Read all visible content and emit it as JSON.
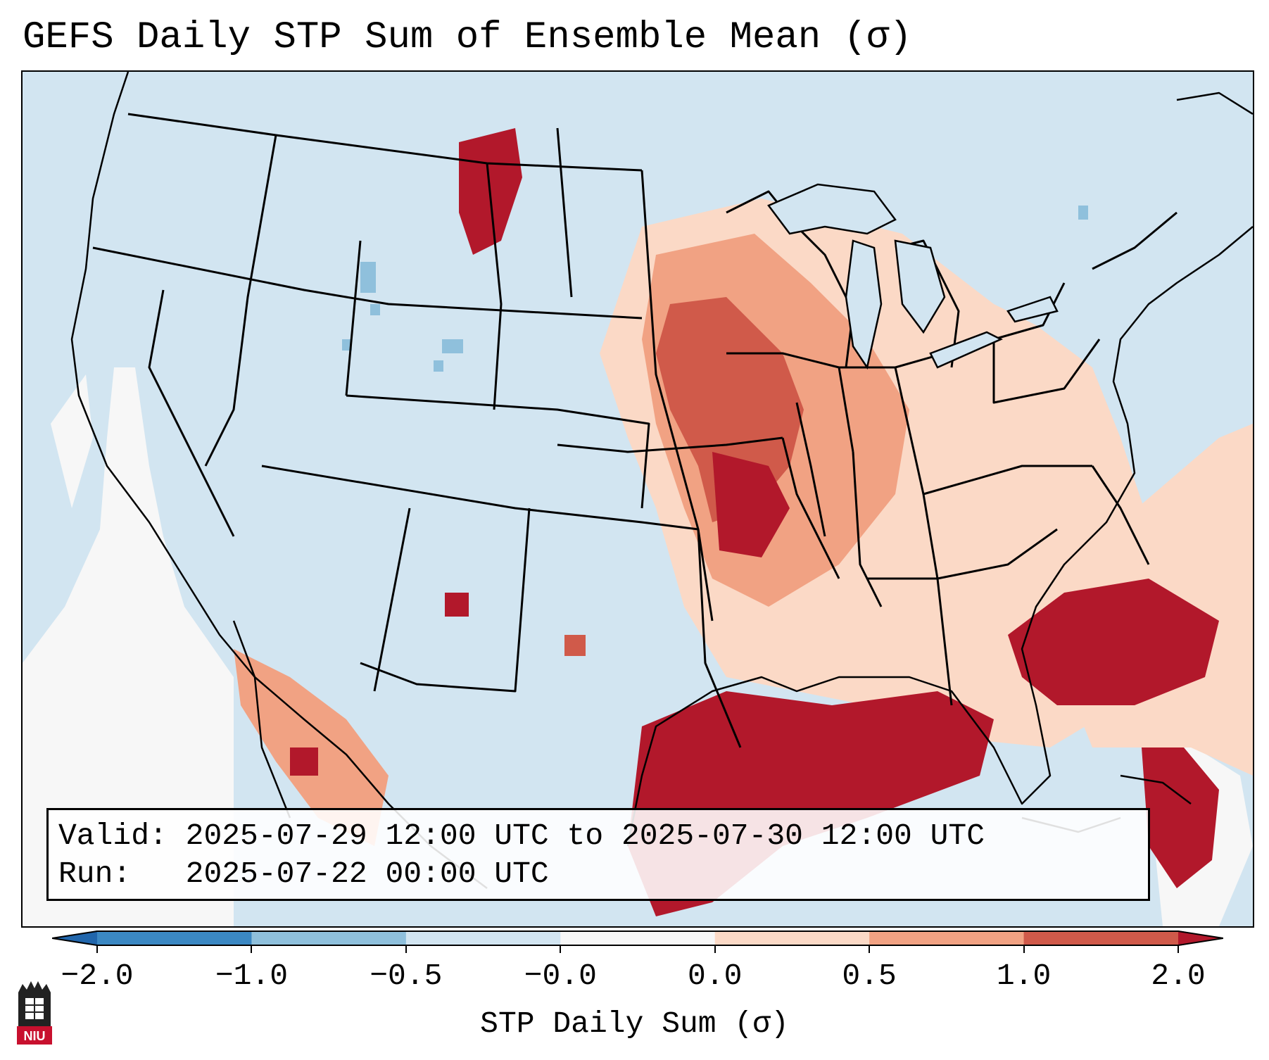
{
  "title": "GEFS Daily STP Sum of Ensemble Mean (σ)",
  "info": {
    "valid_label": "Valid:",
    "valid_value": "2025-07-29 12:00 UTC to 2025-07-30 12:00 UTC",
    "run_label": "Run:",
    "run_value": "2025-07-22 00:00 UTC"
  },
  "colorbar": {
    "label": "STP Daily Sum (σ)",
    "ticks": [
      "−2.0",
      "−1.0",
      "−0.5",
      "−0.0",
      "0.0",
      "0.5",
      "1.0",
      "2.0"
    ],
    "bins": [
      {
        "from": -2.0,
        "to": -1.0,
        "color": "#3b88c3"
      },
      {
        "from": -1.0,
        "to": -0.5,
        "color": "#8fc0dc"
      },
      {
        "from": -0.5,
        "to": -0.0,
        "color": "#d2e5f1"
      },
      {
        "from": -0.0,
        "to": 0.0,
        "color": "#f7f7f7"
      },
      {
        "from": 0.0,
        "to": 0.5,
        "color": "#fbd9c6"
      },
      {
        "from": 0.5,
        "to": 1.0,
        "color": "#f1a283"
      },
      {
        "from": 1.0,
        "to": 2.0,
        "color": "#d05a4a"
      }
    ],
    "extend_low_color": "#2166ac",
    "extend_high_color": "#b2182b"
  },
  "field_colors": {
    "ocean_near_zero": "#f7f7f7",
    "land_background": "#d2e5f1",
    "light_positive": "#fbd9c6",
    "moderate_positive": "#f1a283",
    "strong_positive": "#d05a4a",
    "extreme_positive": "#b2182b",
    "negative": "#8fc0dc"
  },
  "logo": {
    "text": "NIU",
    "color": "#c8102e"
  }
}
